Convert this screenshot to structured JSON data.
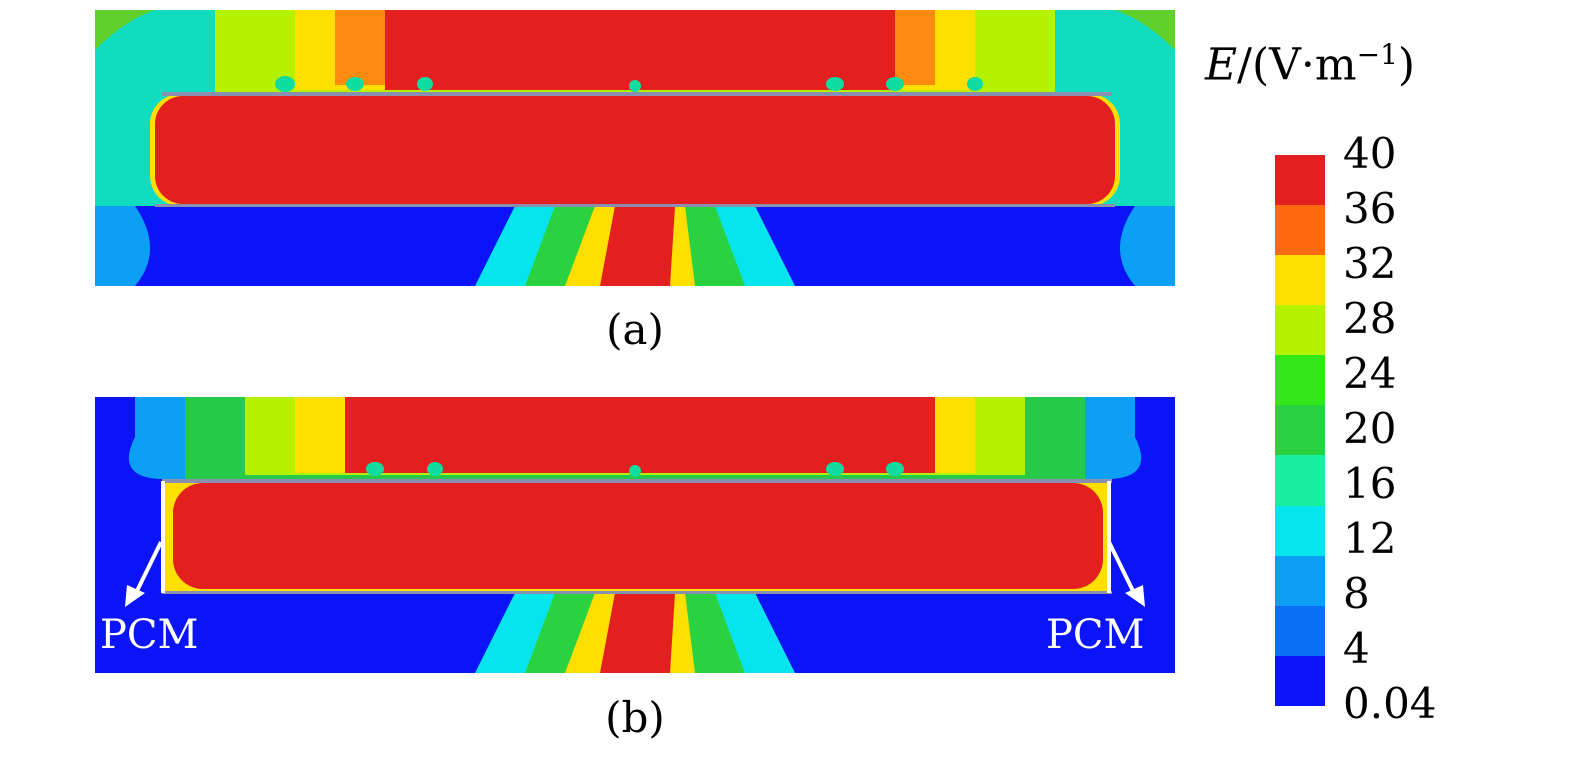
{
  "figure": {
    "panels": [
      {
        "id": "a",
        "caption": "(a)"
      },
      {
        "id": "b",
        "caption": "(b)"
      }
    ],
    "annotations": {
      "pcm_left": "PCM",
      "pcm_right": "PCM"
    }
  },
  "legend": {
    "title_var": "E",
    "title_unit": "/(V·m",
    "title_exp": "−1",
    "title_close": ")",
    "ticks": [
      "40",
      "36",
      "32",
      "28",
      "24",
      "20",
      "16",
      "12",
      "8",
      "4",
      "0.04"
    ],
    "colors": [
      "#e41f1f",
      "#ff6a10",
      "#ffdf00",
      "#b5f200",
      "#33e81a",
      "#2ad242",
      "#18f0a0",
      "#06e4ee",
      "#0b9ff5",
      "#0a6ff4",
      "#0a14f6"
    ]
  }
}
